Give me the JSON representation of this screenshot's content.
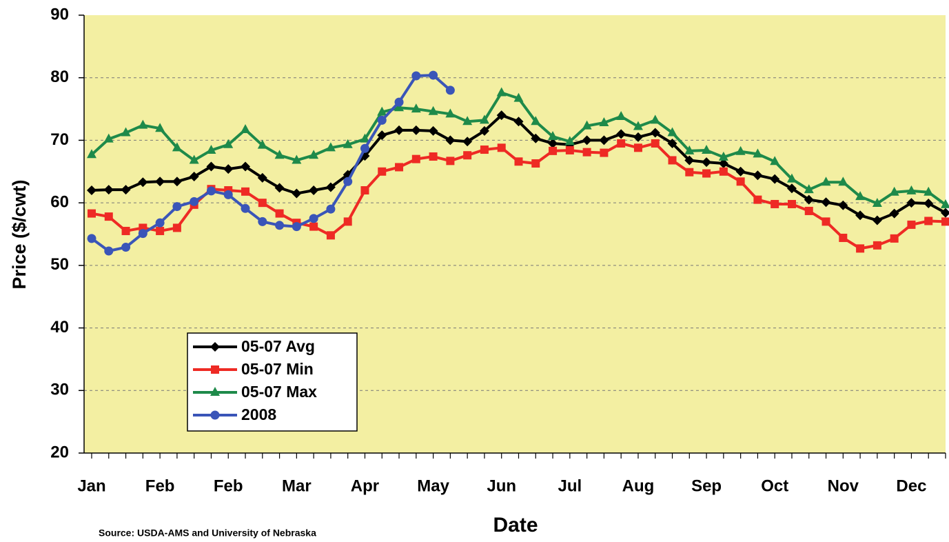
{
  "chart_data": {
    "type": "line",
    "x_label": "Date",
    "y_label": "Price ($/cwt)",
    "source": "Source: USDA-AMS and University of Nebraska",
    "categories": [
      "Jan",
      null,
      null,
      null,
      "Feb",
      null,
      null,
      null,
      "Feb",
      null,
      null,
      null,
      "Mar",
      null,
      null,
      null,
      "Apr",
      null,
      null,
      null,
      "May",
      null,
      null,
      null,
      "Jun",
      null,
      null,
      null,
      "Jul",
      null,
      null,
      null,
      "Aug",
      null,
      null,
      null,
      "Sep",
      null,
      null,
      null,
      "Oct",
      null,
      null,
      null,
      "Nov",
      null,
      null,
      null,
      "Dec",
      null,
      null
    ],
    "series": [
      {
        "name": "05-07 Avg",
        "color": "#000000",
        "marker": "diamond",
        "values": [
          62,
          62.1,
          62.1,
          63.3,
          63.4,
          63.4,
          64.2,
          65.8,
          65.4,
          65.8,
          64,
          62.4,
          61.5,
          62,
          62.5,
          64.5,
          67.5,
          70.8,
          71.6,
          71.6,
          71.5,
          70,
          69.8,
          71.5,
          74,
          73,
          70.3,
          69.5,
          69.3,
          70,
          70,
          71,
          70.5,
          71.2,
          69.5,
          66.8,
          66.5,
          66.3,
          65,
          64.4,
          63.8,
          62.3,
          60.5,
          60.1,
          59.6,
          58,
          57.2,
          58.3,
          60,
          59.9,
          58.4
        ]
      },
      {
        "name": "05-07 Min",
        "color": "#ee2a24",
        "marker": "square",
        "values": [
          58.3,
          57.8,
          55.5,
          56,
          55.5,
          56,
          59.7,
          62.2,
          62,
          61.8,
          60,
          58.3,
          56.8,
          56.2,
          54.8,
          57,
          62,
          65,
          65.7,
          67,
          67.4,
          66.7,
          67.6,
          68.5,
          68.8,
          66.6,
          66.3,
          68.3,
          68.4,
          68.1,
          68,
          69.5,
          68.8,
          69.5,
          66.8,
          64.9,
          64.7,
          65,
          63.4,
          60.5,
          59.8,
          59.8,
          58.7,
          57,
          54.4,
          52.7,
          53.2,
          54.3,
          56.5,
          57.1,
          57
        ]
      },
      {
        "name": "05-07 Max",
        "color": "#1e8a4a",
        "marker": "triangle",
        "values": [
          67.7,
          70.2,
          71.2,
          72.4,
          71.9,
          68.8,
          66.8,
          68.4,
          69.3,
          71.7,
          69.2,
          67.6,
          66.8,
          67.6,
          68.8,
          69.3,
          70.2,
          74.5,
          75.2,
          75,
          74.6,
          74.2,
          73,
          73.2,
          77.6,
          76.7,
          73,
          70.6,
          69.8,
          72.3,
          72.8,
          73.8,
          72.2,
          73.2,
          71.2,
          68.3,
          68.4,
          67.3,
          68.2,
          67.8,
          66.6,
          63.8,
          62.1,
          63.3,
          63.3,
          61,
          59.9,
          61.7,
          61.9,
          61.7,
          59.7
        ]
      },
      {
        "name": "2008",
        "color": "#3a55b8",
        "marker": "circle",
        "values": [
          54.3,
          52.3,
          52.9,
          55.1,
          56.8,
          59.4,
          60.2,
          61.9,
          61.3,
          59.1,
          57,
          56.4,
          56.2,
          57.5,
          59,
          63.4,
          68.7,
          73.2,
          76.1,
          80.3,
          80.4,
          78,
          null,
          null,
          null,
          null,
          null,
          null,
          null,
          null,
          null,
          null,
          null,
          null,
          null,
          null,
          null,
          null,
          null,
          null,
          null,
          null,
          null,
          null,
          null,
          null,
          null,
          null,
          null,
          null,
          null
        ]
      }
    ],
    "ylim": [
      20,
      90
    ],
    "yticks": [
      20,
      30,
      40,
      50,
      60,
      70,
      80,
      90
    ],
    "grid": true,
    "legend": "lower left",
    "plot_color": "#f3efa2"
  }
}
